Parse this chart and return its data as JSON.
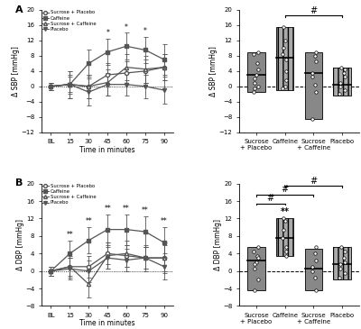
{
  "time_labels": [
    "BL",
    "15",
    "30",
    "45",
    "60",
    "75",
    "90"
  ],
  "time_x": [
    0,
    1,
    2,
    3,
    4,
    5,
    6
  ],
  "sbp_sp_mean": [
    0,
    0.5,
    0.0,
    3.0,
    3.5,
    4.0,
    5.0
  ],
  "sbp_sp_err": [
    1.0,
    2.0,
    3.0,
    3.0,
    3.0,
    3.0,
    3.5
  ],
  "sbp_c_mean": [
    0,
    0.5,
    6.0,
    9.0,
    10.5,
    9.5,
    7.0
  ],
  "sbp_c_err": [
    1.0,
    3.5,
    3.5,
    3.5,
    3.5,
    3.5,
    4.0
  ],
  "sbp_sc_mean": [
    0,
    0.5,
    0.0,
    1.0,
    5.0,
    4.5,
    5.0
  ],
  "sbp_sc_err": [
    1.0,
    2.5,
    3.0,
    3.5,
    3.5,
    3.5,
    3.5
  ],
  "sbp_p_mean": [
    0,
    0.5,
    -1.5,
    0.5,
    0.5,
    0.0,
    -1.0
  ],
  "sbp_p_err": [
    1.0,
    3.5,
    3.5,
    3.0,
    3.0,
    3.0,
    3.5
  ],
  "sbp_sig_times": [
    3,
    4,
    5
  ],
  "dbp_sp_mean": [
    0,
    1.0,
    1.0,
    4.0,
    3.5,
    3.0,
    3.0
  ],
  "dbp_sp_err": [
    1.0,
    2.0,
    2.5,
    2.5,
    2.5,
    2.5,
    3.0
  ],
  "dbp_c_mean": [
    0,
    4.0,
    7.0,
    9.5,
    9.5,
    9.0,
    6.5
  ],
  "dbp_c_err": [
    1.0,
    3.0,
    3.0,
    3.5,
    3.5,
    3.5,
    3.5
  ],
  "dbp_sc_mean": [
    0,
    1.0,
    -3.0,
    3.5,
    4.0,
    3.0,
    3.0
  ],
  "dbp_sc_err": [
    1.0,
    2.5,
    3.0,
    3.0,
    3.0,
    3.0,
    3.5
  ],
  "dbp_p_mean": [
    0,
    0.5,
    0.0,
    3.0,
    2.5,
    3.0,
    1.0
  ],
  "dbp_p_err": [
    1.0,
    2.5,
    2.5,
    2.5,
    2.5,
    2.5,
    3.0
  ],
  "dbp_sig_times": [
    1,
    2,
    3,
    4,
    5,
    6
  ],
  "sbp_boxes": [
    {
      "q1": -1.5,
      "median": 3.0,
      "q3": 9.0,
      "hatch": false,
      "color": "#888888",
      "dots": [
        9.0,
        8.5,
        6.0,
        4.5,
        3.0,
        2.0,
        1.0,
        0.0,
        -0.5,
        -1.5
      ]
    },
    {
      "q1": -1.0,
      "median": 7.5,
      "q3": 15.5,
      "hatch": true,
      "color": "#aaaaaa",
      "dots": [
        15.5,
        12.0,
        10.0,
        8.5,
        7.0,
        4.0,
        1.5,
        0.0,
        -0.5
      ]
    },
    {
      "q1": -8.5,
      "median": 3.5,
      "q3": 9.0,
      "hatch": false,
      "color": "#888888",
      "dots": [
        9.0,
        8.0,
        6.5,
        3.5,
        2.5,
        0.5,
        -1.5,
        -8.5
      ]
    },
    {
      "q1": -2.5,
      "median": 0.5,
      "q3": 5.0,
      "hatch": true,
      "color": "#aaaaaa",
      "dots": [
        5.0,
        4.5,
        3.5,
        2.5,
        1.0,
        0.0,
        -1.0,
        -2.0
      ]
    }
  ],
  "dbp_boxes": [
    {
      "q1": -4.5,
      "median": 2.5,
      "q3": 5.5,
      "hatch": false,
      "color": "#888888",
      "dots": [
        5.5,
        4.5,
        3.5,
        3.0,
        2.0,
        1.5,
        0.5,
        -2.0,
        -4.5
      ]
    },
    {
      "q1": 3.5,
      "median": 7.5,
      "q3": 12.0,
      "hatch": true,
      "color": "#aaaaaa",
      "dots": [
        12.0,
        11.5,
        9.5,
        7.5,
        5.5,
        4.5,
        3.5
      ]
    },
    {
      "q1": -4.5,
      "median": 0.5,
      "q3": 5.0,
      "hatch": false,
      "color": "#888888",
      "dots": [
        5.5,
        4.0,
        2.5,
        1.0,
        0.0,
        -1.5,
        -4.5
      ]
    },
    {
      "q1": -2.0,
      "median": 1.5,
      "q3": 5.5,
      "hatch": true,
      "color": "#aaaaaa",
      "dots": [
        5.5,
        4.5,
        3.0,
        2.0,
        1.5,
        0.5,
        -0.5,
        -1.5
      ]
    }
  ],
  "box_xlabels": [
    "Sucrose\n+ Placebo",
    "Caffeine",
    "Sucrose\n+ Caffeine",
    "Placebo"
  ],
  "gray": "#555555",
  "line_gray": "#666666"
}
